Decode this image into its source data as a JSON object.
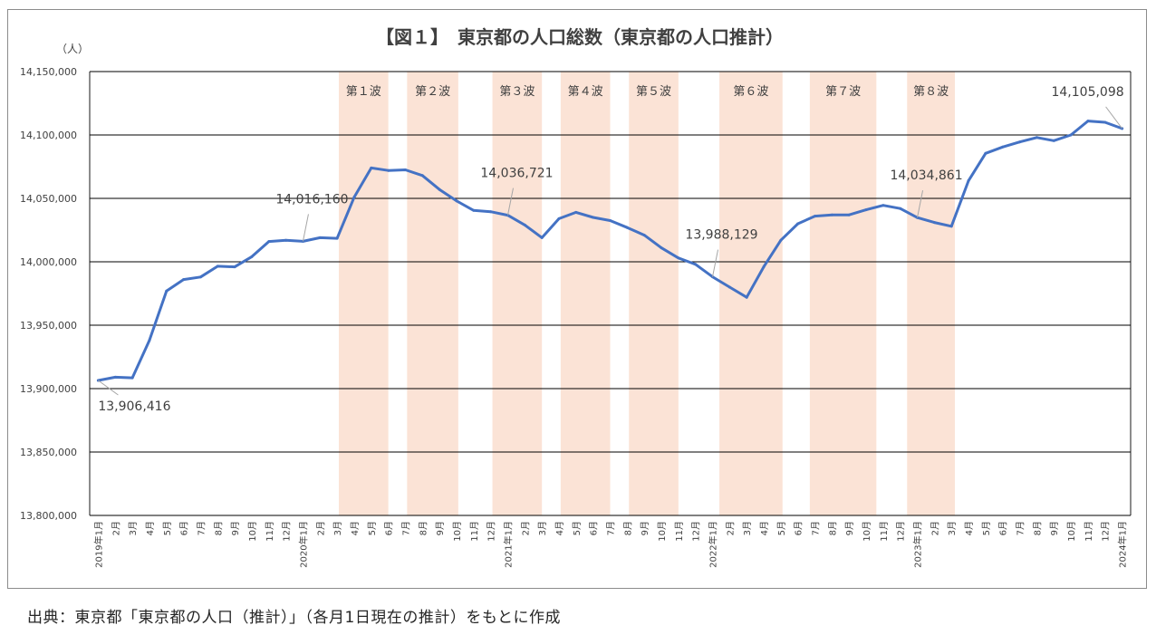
{
  "chart_data": {
    "type": "line",
    "title": "【図１】　東京都の人口総数（東京都の人口推計）",
    "unit_label": "（人）",
    "source": "出典：東京都「東京都の人口（推計）」（各月1日現在の推計）をもとに作成",
    "line_color": "#4472c4",
    "band_color": "#fbe3d6",
    "grid": true,
    "ylim": [
      13800000,
      14150000
    ],
    "yticks": [
      13800000,
      13850000,
      13900000,
      13950000,
      14000000,
      14050000,
      14100000,
      14150000
    ],
    "ytick_labels": [
      "13,800,000",
      "13,850,000",
      "13,900,000",
      "13,950,000",
      "14,000,000",
      "14,050,000",
      "14,100,000",
      "14,150,000"
    ],
    "x_labels": [
      "2019年1月",
      "2月",
      "3月",
      "4月",
      "5月",
      "6月",
      "7月",
      "8月",
      "9月",
      "10月",
      "11月",
      "12月",
      "2020年1月",
      "2月",
      "3月",
      "4月",
      "5月",
      "6月",
      "7月",
      "8月",
      "9月",
      "10月",
      "11月",
      "12月",
      "2021年1月",
      "2月",
      "3月",
      "4月",
      "5月",
      "6月",
      "7月",
      "8月",
      "9月",
      "10月",
      "11月",
      "12月",
      "2022年1月",
      "2月",
      "3月",
      "4月",
      "5月",
      "6月",
      "7月",
      "8月",
      "9月",
      "10月",
      "11月",
      "12月",
      "2023年1月",
      "2月",
      "3月",
      "4月",
      "5月",
      "6月",
      "7月",
      "8月",
      "9月",
      "10月",
      "11月",
      "12月",
      "2024年1月"
    ],
    "values": [
      13906416,
      13909000,
      13908500,
      13938000,
      13977000,
      13986000,
      13988000,
      13996500,
      13996000,
      14004000,
      14016000,
      14017000,
      14016160,
      14019000,
      14018500,
      14051000,
      14074000,
      14072000,
      14072500,
      14068000,
      14057000,
      14048000,
      14040500,
      14039500,
      14036721,
      14029000,
      14019000,
      14034000,
      14039000,
      14035000,
      14032500,
      14027000,
      14021000,
      14011000,
      14003000,
      13998000,
      13988129,
      13980000,
      13972000,
      13996000,
      14017000,
      14030000,
      14036000,
      14037000,
      14037000,
      14041000,
      14044500,
      14042000,
      14034861,
      14031000,
      14028000,
      14064000,
      14085500,
      14090500,
      14094500,
      14098000,
      14095500,
      14100000,
      14111000,
      14110000,
      14105098
    ],
    "bands": [
      {
        "label": "第１波",
        "start": 14.6,
        "end": 17.5
      },
      {
        "label": "第２波",
        "start": 18.6,
        "end": 21.6
      },
      {
        "label": "第３波",
        "start": 23.6,
        "end": 26.5
      },
      {
        "label": "第４波",
        "start": 27.6,
        "end": 30.5
      },
      {
        "label": "第５波",
        "start": 31.6,
        "end": 34.5
      },
      {
        "label": "第６波",
        "start": 36.9,
        "end": 40.6
      },
      {
        "label": "第７波",
        "start": 42.2,
        "end": 46.1
      },
      {
        "label": "第８波",
        "start": 47.9,
        "end": 50.7
      }
    ],
    "annotations": [
      {
        "index": 0,
        "text": "13,906,416",
        "pos": "below"
      },
      {
        "index": 12,
        "text": "14,016,160",
        "pos": "above"
      },
      {
        "index": 24,
        "text": "14,036,721",
        "pos": "above"
      },
      {
        "index": 36,
        "text": "13,988,129",
        "pos": "above"
      },
      {
        "index": 48,
        "text": "14,034,861",
        "pos": "above"
      },
      {
        "index": 60,
        "text": "14,105,098",
        "pos": "above-left"
      }
    ]
  }
}
